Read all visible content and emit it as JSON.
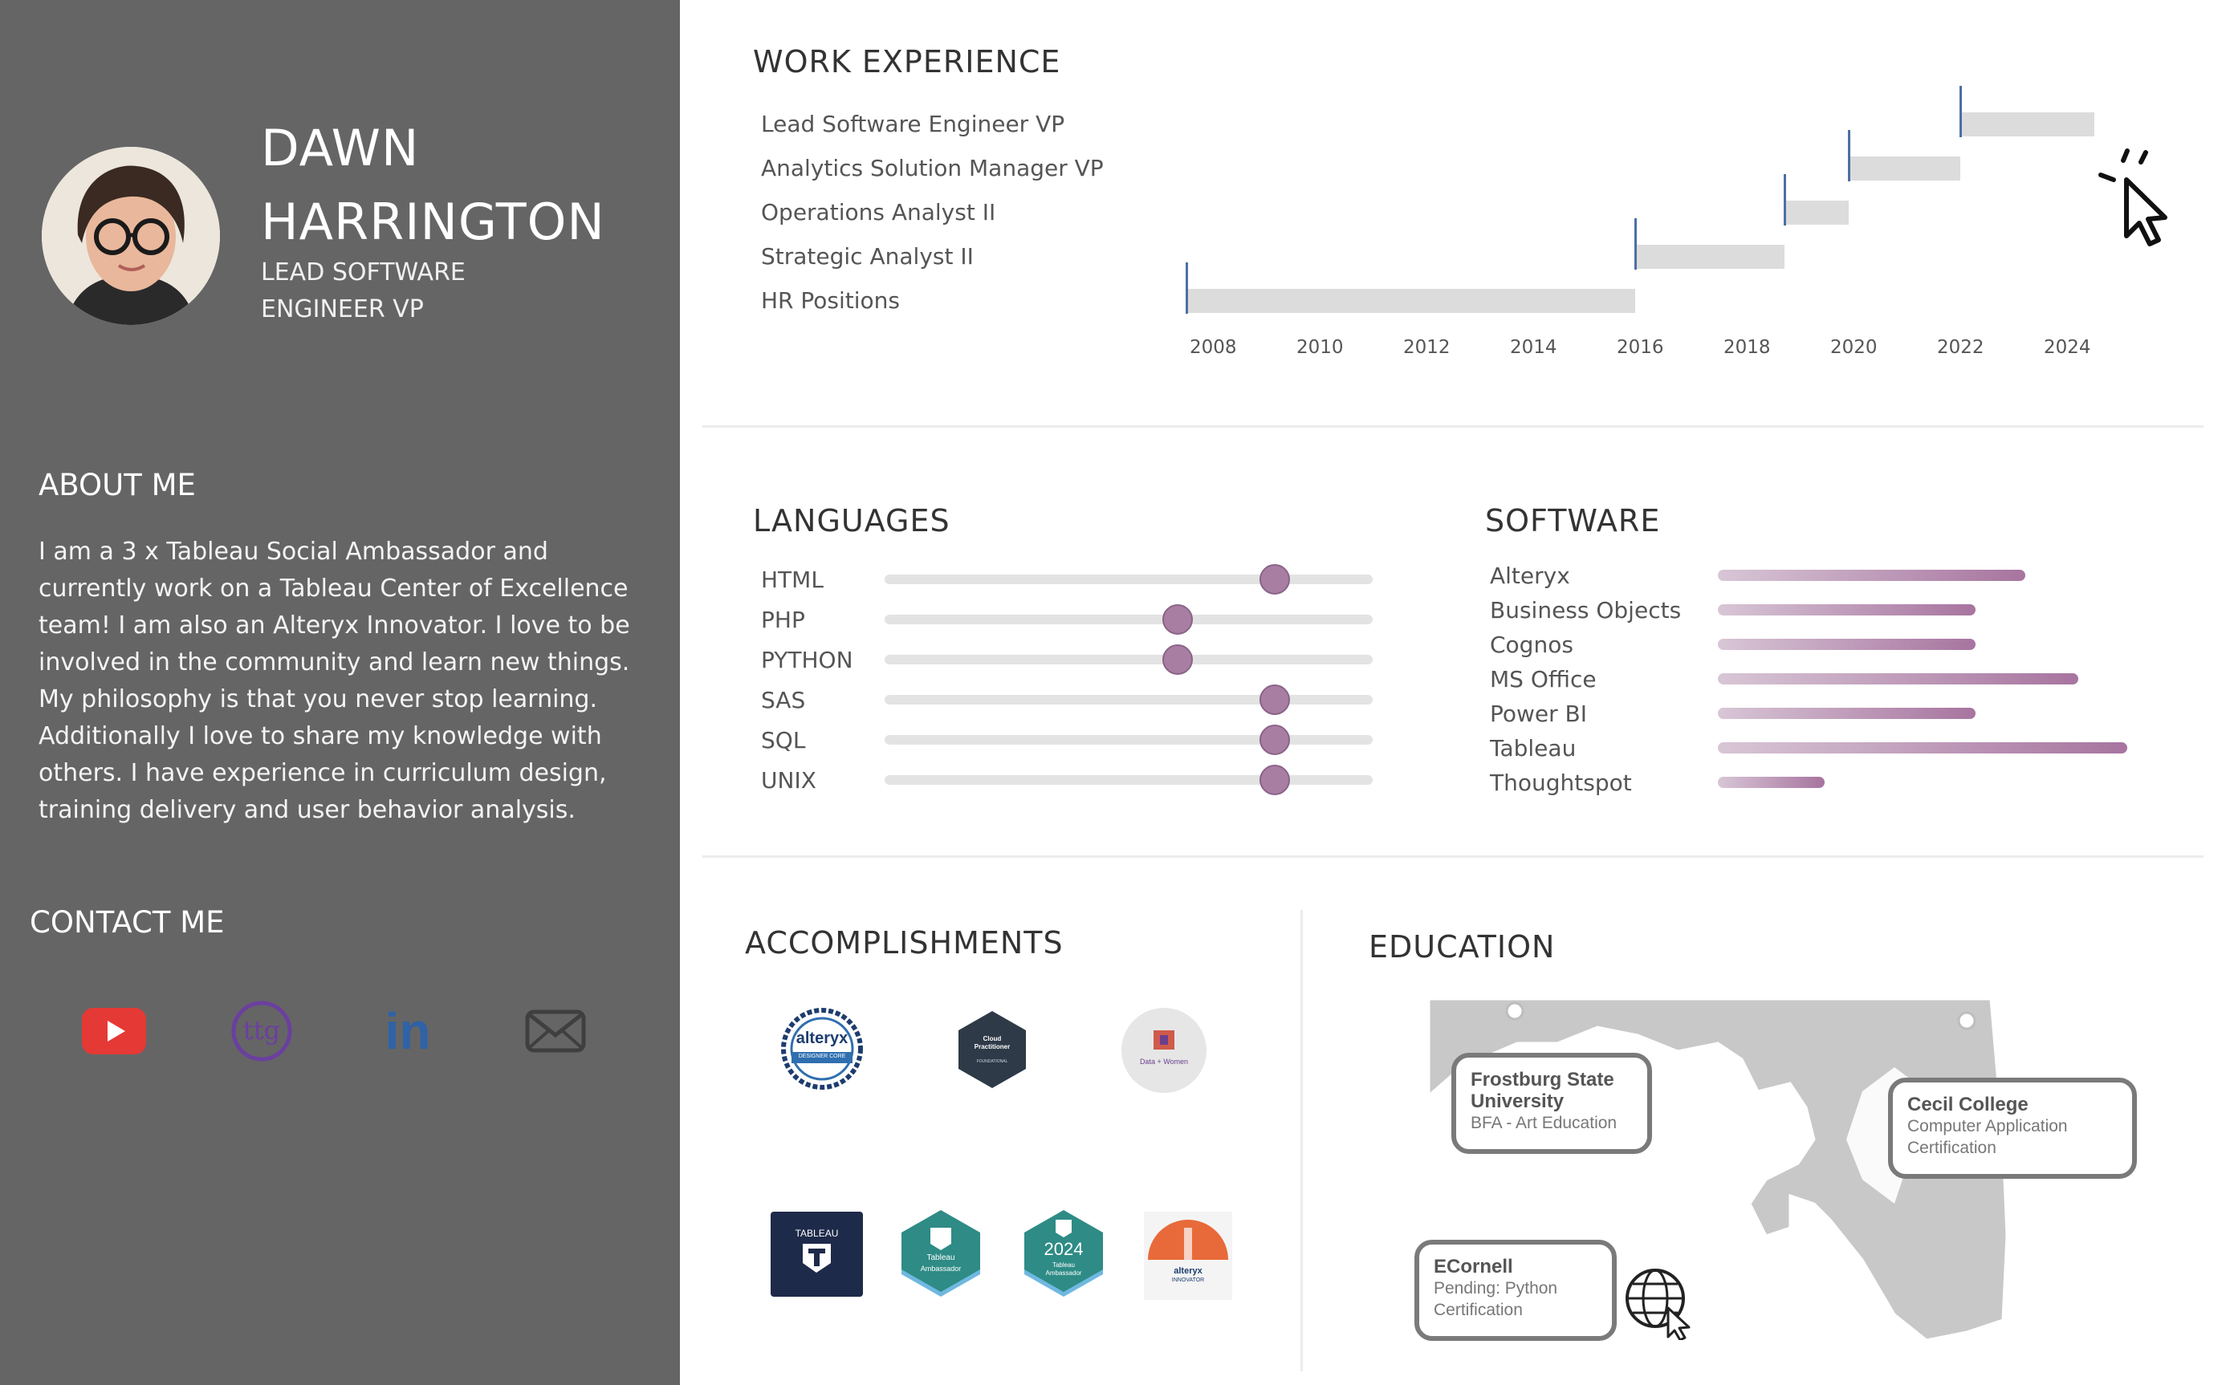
{
  "profile": {
    "first_name": "DAWN",
    "last_name": "HARRINGTON",
    "title_line1": "LEAD SOFTWARE",
    "title_line2": "ENGINEER VP"
  },
  "about": {
    "heading": "ABOUT ME",
    "text": "I am a 3 x Tableau Social Ambassador and currently work on a Tableau Center of Excellence team! I am also an Alteryx Innovator. I love to be involved in the community and learn new things. My philosophy is that you never stop learning. Additionally I love to share my knowledge with others. I have experience in curriculum design, training delivery and user behavior analysis."
  },
  "contact": {
    "heading": "CONTACT ME",
    "icons": [
      "youtube-icon",
      "ttg-icon",
      "linkedin-icon",
      "email-icon"
    ],
    "ttg_text": "ttg",
    "linkedin_text": "in"
  },
  "work": {
    "heading": "WORK EXPERIENCE",
    "cursor_icon": "click-cursor-icon"
  },
  "languages": {
    "heading": "LANGUAGES"
  },
  "software": {
    "heading": "SOFTWARE"
  },
  "accomplishments": {
    "heading": "ACCOMPLISHMENTS",
    "badges": [
      {
        "icon": "alteryx-designer-core-badge",
        "text": "alteryx",
        "sub": "DESIGNER CORE"
      },
      {
        "icon": "cloud-practitioner-badge",
        "text": "Cloud Practitioner",
        "sub": "FOUNDATIONAL"
      },
      {
        "icon": "data-plus-women-badge",
        "text": "Data + Women",
        "sub": ""
      },
      {
        "icon": "tableau-certified-badge",
        "text": "TABLEAU",
        "sub": ""
      },
      {
        "icon": "tableau-ambassador-badge",
        "text": "Tableau",
        "sub": "Ambassador"
      },
      {
        "icon": "tableau-ambassador-2024-badge",
        "text": "2024",
        "sub": "Tableau Ambassador"
      },
      {
        "icon": "alteryx-innovator-badge",
        "text": "alteryx",
        "sub": "INNOVATOR"
      }
    ]
  },
  "education": {
    "heading": "EDUCATION",
    "map_icon": "maryland-map",
    "globe_icon": "globe-cursor-icon",
    "schools": [
      {
        "name": "Frostburg State University",
        "detail": "BFA - Art Education"
      },
      {
        "name": "Cecil College",
        "detail": "Computer Application Certification"
      },
      {
        "name": "ECornell",
        "detail": "Pending: Python Certification"
      }
    ]
  },
  "colors": {
    "left_panel": "#656565",
    "accent_purple": "#a87ea3",
    "gantt_bar": "#dcdcdc",
    "gantt_start": "#4d6fa3"
  },
  "chart_data": [
    {
      "type": "bar",
      "chart": "gantt",
      "categories": [
        "Lead Software Engineer VP",
        "Analytics Solution Manager VP",
        "Operations Analyst II",
        "Strategic Analyst II",
        "HR Positions"
      ],
      "ticks": [
        "2008",
        "2010",
        "2012",
        "2014",
        "2016",
        "2018",
        "2020",
        "2022",
        "2024"
      ],
      "starts": [
        2022.0,
        2019.9,
        2018.7,
        2015.9,
        2007.5
      ],
      "ends": [
        2024.5,
        2022.0,
        2019.9,
        2018.7,
        2015.9
      ],
      "xlim": [
        2007.5,
        2025.5
      ]
    },
    {
      "type": "scatter",
      "chart": "slider",
      "categories": [
        "HTML",
        "PHP",
        "PYTHON",
        "SAS",
        "SQL",
        "UNIX"
      ],
      "values": [
        0.8,
        0.6,
        0.6,
        0.8,
        0.8,
        0.8
      ],
      "ylim": [
        0,
        1
      ]
    },
    {
      "type": "bar",
      "categories": [
        "Alteryx",
        "Business Objects",
        "Cognos",
        "MS Office",
        "Power BI",
        "Tableau",
        "Thoughtspot"
      ],
      "values": [
        0.75,
        0.63,
        0.63,
        0.88,
        0.63,
        1.0,
        0.26
      ],
      "ylim": [
        0,
        1
      ]
    }
  ]
}
